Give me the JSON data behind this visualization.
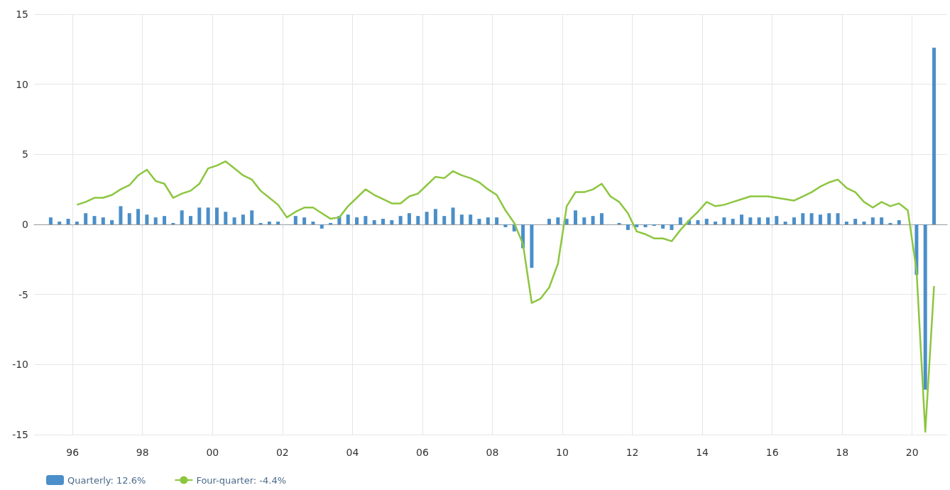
{
  "chart_data": {
    "type": "bar",
    "xlim": [
      1994.9,
      2021
    ],
    "xticks": [
      {
        "value": 1996,
        "label": "96"
      },
      {
        "value": 1998,
        "label": "98"
      },
      {
        "value": 2000,
        "label": "00"
      },
      {
        "value": 2002,
        "label": "02"
      },
      {
        "value": 2004,
        "label": "04"
      },
      {
        "value": 2006,
        "label": "06"
      },
      {
        "value": 2008,
        "label": "08"
      },
      {
        "value": 2010,
        "label": "10"
      },
      {
        "value": 2012,
        "label": "12"
      },
      {
        "value": 2014,
        "label": "14"
      },
      {
        "value": 2016,
        "label": "16"
      },
      {
        "value": 2018,
        "label": "18"
      },
      {
        "value": 2020,
        "label": "20"
      }
    ],
    "ylim": [
      -15,
      15
    ],
    "yticks": [
      -15,
      -10,
      -5,
      0,
      5,
      10,
      15
    ],
    "grid": true,
    "legend": "bottom left",
    "series": [
      {
        "name": "Quarterly: 12.6%",
        "color": "#4a8fc9",
        "x": [
          1995.375,
          1995.625,
          1995.875,
          1996.125,
          1996.375,
          1996.625,
          1996.875,
          1997.125,
          1997.375,
          1997.625,
          1997.875,
          1998.125,
          1998.375,
          1998.625,
          1998.875,
          1999.125,
          1999.375,
          1999.625,
          1999.875,
          2000.125,
          2000.375,
          2000.625,
          2000.875,
          2001.125,
          2001.375,
          2001.625,
          2001.875,
          2002.125,
          2002.375,
          2002.625,
          2002.875,
          2003.125,
          2003.375,
          2003.625,
          2003.875,
          2004.125,
          2004.375,
          2004.625,
          2004.875,
          2005.125,
          2005.375,
          2005.625,
          2005.875,
          2006.125,
          2006.375,
          2006.625,
          2006.875,
          2007.125,
          2007.375,
          2007.625,
          2007.875,
          2008.125,
          2008.375,
          2008.625,
          2008.875,
          2009.125,
          2009.375,
          2009.625,
          2009.875,
          2010.125,
          2010.375,
          2010.625,
          2010.875,
          2011.125,
          2011.375,
          2011.625,
          2011.875,
          2012.125,
          2012.375,
          2012.625,
          2012.875,
          2013.125,
          2013.375,
          2013.625,
          2013.875,
          2014.125,
          2014.375,
          2014.625,
          2014.875,
          2015.125,
          2015.375,
          2015.625,
          2015.875,
          2016.125,
          2016.375,
          2016.625,
          2016.875,
          2017.125,
          2017.375,
          2017.625,
          2017.875,
          2018.125,
          2018.375,
          2018.625,
          2018.875,
          2019.125,
          2019.375,
          2019.625,
          2019.875,
          2020.125,
          2020.375,
          2020.625
        ],
        "values": [
          0.5,
          0.2,
          0.4,
          0.2,
          0.8,
          0.6,
          0.5,
          0.3,
          1.3,
          0.8,
          1.1,
          0.7,
          0.5,
          0.6,
          0.1,
          1.0,
          0.6,
          1.2,
          1.2,
          1.2,
          0.9,
          0.5,
          0.7,
          1.0,
          0.1,
          0.2,
          0.2,
          0,
          0.6,
          0.5,
          0.2,
          -0.3,
          0.1,
          0.6,
          0.7,
          0.5,
          0.6,
          0.3,
          0.4,
          0.3,
          0.6,
          0.8,
          0.6,
          0.9,
          1.1,
          0.6,
          1.2,
          0.7,
          0.7,
          0.4,
          0.5,
          0.5,
          -0.2,
          -0.5,
          -1.7,
          -3.1,
          0,
          0.4,
          0.5,
          0.4,
          1.0,
          0.5,
          0.6,
          0.8,
          0,
          0.1,
          -0.4,
          -0.2,
          -0.2,
          -0.1,
          -0.3,
          -0.4,
          0.5,
          0.3,
          0.3,
          0.4,
          0.2,
          0.5,
          0.4,
          0.7,
          0.5,
          0.5,
          0.5,
          0.6,
          0.2,
          0.5,
          0.8,
          0.8,
          0.7,
          0.8,
          0.8,
          0.2,
          0.4,
          0.2,
          0.5,
          0.5,
          0.1,
          0.3,
          0,
          -3.6,
          -11.8,
          12.6
        ]
      },
      {
        "name": "Four-quarter: -4.4%",
        "type": "line",
        "color": "#8cc63f",
        "x": [
          1996.125,
          1996.375,
          1996.625,
          1996.875,
          1997.125,
          1997.375,
          1997.625,
          1997.875,
          1998.125,
          1998.375,
          1998.625,
          1998.875,
          1999.125,
          1999.375,
          1999.625,
          1999.875,
          2000.125,
          2000.375,
          2000.625,
          2000.875,
          2001.125,
          2001.375,
          2001.625,
          2001.875,
          2002.125,
          2002.375,
          2002.625,
          2002.875,
          2003.125,
          2003.375,
          2003.625,
          2003.875,
          2004.125,
          2004.375,
          2004.625,
          2004.875,
          2005.125,
          2005.375,
          2005.625,
          2005.875,
          2006.125,
          2006.375,
          2006.625,
          2006.875,
          2007.125,
          2007.375,
          2007.625,
          2007.875,
          2008.125,
          2008.375,
          2008.625,
          2008.875,
          2009.125,
          2009.375,
          2009.625,
          2009.875,
          2010.125,
          2010.375,
          2010.625,
          2010.875,
          2011.125,
          2011.375,
          2011.625,
          2011.875,
          2012.125,
          2012.375,
          2012.625,
          2012.875,
          2013.125,
          2013.375,
          2013.625,
          2013.875,
          2014.125,
          2014.375,
          2014.625,
          2014.875,
          2015.125,
          2015.375,
          2015.625,
          2015.875,
          2016.125,
          2016.375,
          2016.625,
          2016.875,
          2017.125,
          2017.375,
          2017.625,
          2017.875,
          2018.125,
          2018.375,
          2018.625,
          2018.875,
          2019.125,
          2019.375,
          2019.625,
          2019.875,
          2020.125,
          2020.375,
          2020.625
        ],
        "values": [
          1.4,
          1.6,
          1.9,
          1.9,
          2.1,
          2.5,
          2.8,
          3.5,
          3.9,
          3.1,
          2.9,
          1.9,
          2.2,
          2.4,
          2.9,
          4.0,
          4.2,
          4.5,
          4.0,
          3.5,
          3.2,
          2.4,
          1.9,
          1.4,
          0.5,
          0.9,
          1.2,
          1.2,
          0.8,
          0.4,
          0.5,
          1.3,
          1.9,
          2.5,
          2.1,
          1.8,
          1.5,
          1.5,
          2.0,
          2.2,
          2.8,
          3.4,
          3.3,
          3.8,
          3.5,
          3.3,
          3.0,
          2.5,
          2.1,
          1.0,
          0.1,
          -1.4,
          -5.6,
          -5.3,
          -4.5,
          -2.8,
          1.3,
          2.3,
          2.3,
          2.5,
          2.9,
          2.0,
          1.6,
          0.8,
          -0.5,
          -0.7,
          -1.0,
          -1.0,
          -1.2,
          -0.4,
          0.3,
          0.9,
          1.6,
          1.3,
          1.4,
          1.6,
          1.8,
          2.0,
          2.0,
          2.0,
          1.9,
          1.8,
          1.7,
          2.0,
          2.3,
          2.7,
          3.0,
          3.2,
          2.6,
          2.3,
          1.6,
          1.2,
          1.6,
          1.3,
          1.5,
          1.0,
          -3.3,
          -14.8,
          -4.4
        ]
      }
    ]
  }
}
